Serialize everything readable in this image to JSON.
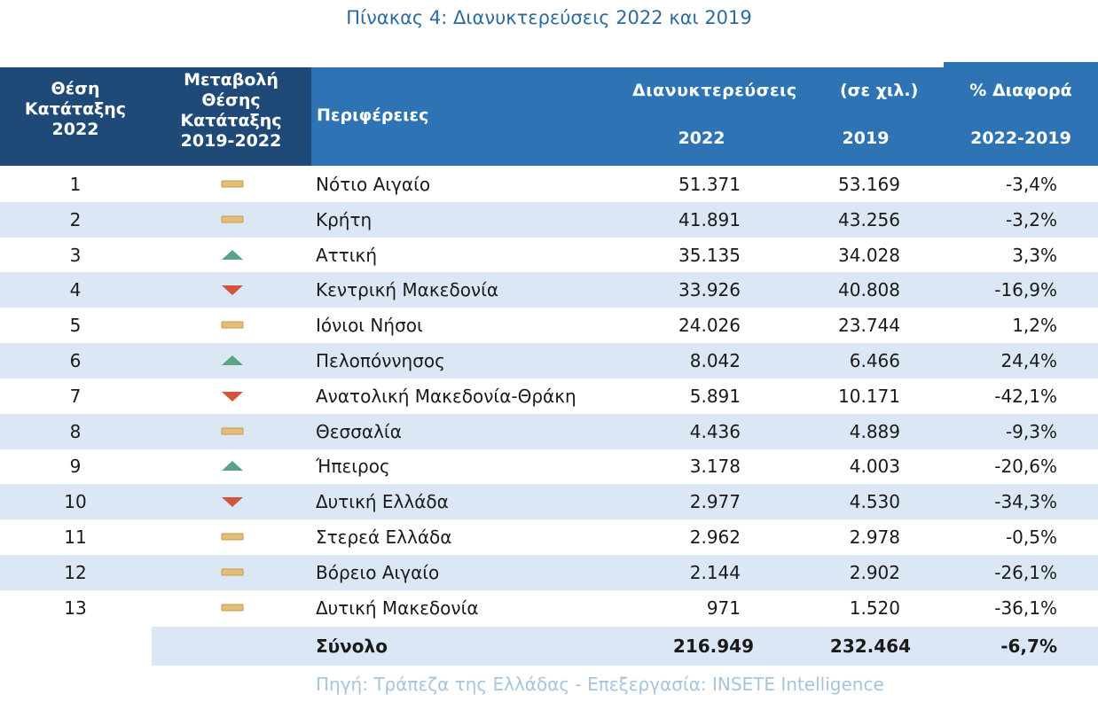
{
  "title": "Πίνακας 4: Διανυκτερεύσεις 2022 και 2019",
  "header": {
    "rank": [
      "Θέση",
      "Κατάταξης",
      "2022"
    ],
    "change": [
      "Μεταβολή",
      "Θέσης",
      "Κατάταξης",
      "2019-2022"
    ],
    "region": "Περιφέρειες",
    "nights_group": "Διανυκτερεύσεις",
    "units": "(σε χιλ.)",
    "pct_group": "% Διαφορά",
    "y2022": "2022",
    "y2019": "2019",
    "pct_range": "2022-2019"
  },
  "colors": {
    "header_dark": "#1f4a78",
    "header_blue": "#2e74b5",
    "row_alt": "#dbe7f4",
    "up": "#5aa383",
    "down": "#d2553b",
    "same": "#e4be78"
  },
  "rows": [
    {
      "rank": "1",
      "change": "same",
      "region": "Νότιο Αιγαίο",
      "v2022": "51.371",
      "v2019": "53.169",
      "pct": "-3,4%"
    },
    {
      "rank": "2",
      "change": "same",
      "region": "Κρήτη",
      "v2022": "41.891",
      "v2019": "43.256",
      "pct": "-3,2%"
    },
    {
      "rank": "3",
      "change": "up",
      "region": "Αττική",
      "v2022": "35.135",
      "v2019": "34.028",
      "pct": "3,3%"
    },
    {
      "rank": "4",
      "change": "down",
      "region": "Κεντρική Μακεδονία",
      "v2022": "33.926",
      "v2019": "40.808",
      "pct": "-16,9%"
    },
    {
      "rank": "5",
      "change": "same",
      "region": "Ιόνιοι Νήσοι",
      "v2022": "24.026",
      "v2019": "23.744",
      "pct": "1,2%"
    },
    {
      "rank": "6",
      "change": "up",
      "region": "Πελοπόννησος",
      "v2022": "8.042",
      "v2019": "6.466",
      "pct": "24,4%"
    },
    {
      "rank": "7",
      "change": "down",
      "region": "Ανατολική Μακεδονία-Θράκη",
      "v2022": "5.891",
      "v2019": "10.171",
      "pct": "-42,1%"
    },
    {
      "rank": "8",
      "change": "same",
      "region": "Θεσσαλία",
      "v2022": "4.436",
      "v2019": "4.889",
      "pct": "-9,3%"
    },
    {
      "rank": "9",
      "change": "up",
      "region": "Ήπειρος",
      "v2022": "3.178",
      "v2019": "4.003",
      "pct": "-20,6%"
    },
    {
      "rank": "10",
      "change": "down",
      "region": "Δυτική Ελλάδα",
      "v2022": "2.977",
      "v2019": "4.530",
      "pct": "-34,3%"
    },
    {
      "rank": "11",
      "change": "same",
      "region": "Στερεά Ελλάδα",
      "v2022": "2.962",
      "v2019": "2.978",
      "pct": "-0,5%"
    },
    {
      "rank": "12",
      "change": "same",
      "region": "Βόρειο Αιγαίο",
      "v2022": "2.144",
      "v2019": "2.902",
      "pct": "-26,1%"
    },
    {
      "rank": "13",
      "change": "same",
      "region": "Δυτική Μακεδονία",
      "v2022": "971",
      "v2019": "1.520",
      "pct": "-36,1%"
    }
  ],
  "total": {
    "label": "Σύνολο",
    "v2022": "216.949",
    "v2019": "232.464",
    "pct": "-6,7%"
  },
  "source": "Πηγή: Τράπεζα της Ελλάδας - Επεξεργασία: INSETE Intelligence"
}
